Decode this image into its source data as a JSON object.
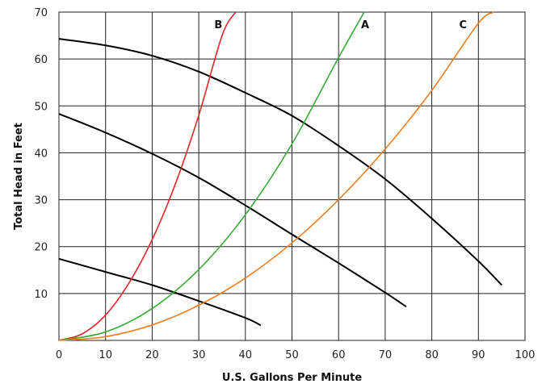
{
  "chart_data": {
    "type": "line",
    "title": "",
    "xlabel": "U.S. Gallons Per Minute",
    "ylabel": "Total Head in Feet",
    "xlim": [
      0,
      100
    ],
    "ylim": [
      0,
      70
    ],
    "x_ticks": [
      0,
      10,
      20,
      30,
      40,
      50,
      60,
      70,
      80,
      90,
      100
    ],
    "y_ticks": [
      10,
      20,
      30,
      40,
      50,
      60,
      70
    ],
    "grid": true,
    "pump_curves": [
      {
        "color": "#000000",
        "x": [
          0,
          10,
          20,
          30,
          40,
          50,
          60,
          70,
          80,
          90,
          95
        ],
        "y": [
          64.3,
          62.9,
          60.7,
          57.3,
          52.8,
          47.9,
          41.5,
          34.4,
          26,
          16.9,
          11.8
        ]
      },
      {
        "color": "#000000",
        "x": [
          0,
          10,
          20,
          30,
          40,
          50,
          60,
          70,
          74.5
        ],
        "y": [
          48.3,
          44.3,
          39.8,
          34.7,
          28.8,
          22.6,
          16.5,
          10.2,
          7.2
        ]
      },
      {
        "color": "#000000",
        "x": [
          0,
          10,
          20,
          30,
          40,
          43.3
        ],
        "y": [
          17.4,
          14.6,
          11.8,
          8.4,
          4.8,
          3.2
        ]
      }
    ],
    "series": [
      {
        "name": "B",
        "color": "#e8242c",
        "x": [
          0,
          5,
          10,
          15,
          20,
          25,
          30,
          35,
          37.9
        ],
        "y": [
          0,
          1.4,
          5.4,
          12.2,
          21.5,
          33.4,
          48,
          65,
          70
        ]
      },
      {
        "name": "A",
        "color": "#3aaa35",
        "x": [
          0,
          10,
          20,
          30,
          40,
          50,
          60,
          65.5
        ],
        "y": [
          0,
          1.8,
          6.8,
          15.1,
          26.8,
          41.9,
          60.3,
          70
        ]
      },
      {
        "name": "C",
        "color": "#f07d1e",
        "x": [
          0,
          10,
          20,
          30,
          40,
          50,
          60,
          70,
          80,
          89.9,
          93.3
        ],
        "y": [
          0,
          0.8,
          3.3,
          7.5,
          13.3,
          20.8,
          30,
          40.8,
          53.3,
          67.5,
          70
        ]
      }
    ],
    "curve_labels": [
      {
        "text": "B",
        "x": 34.2,
        "y": 67.4
      },
      {
        "text": "A",
        "x": 65.7,
        "y": 67.4
      },
      {
        "text": "C",
        "x": 86.7,
        "y": 67.4
      }
    ]
  }
}
